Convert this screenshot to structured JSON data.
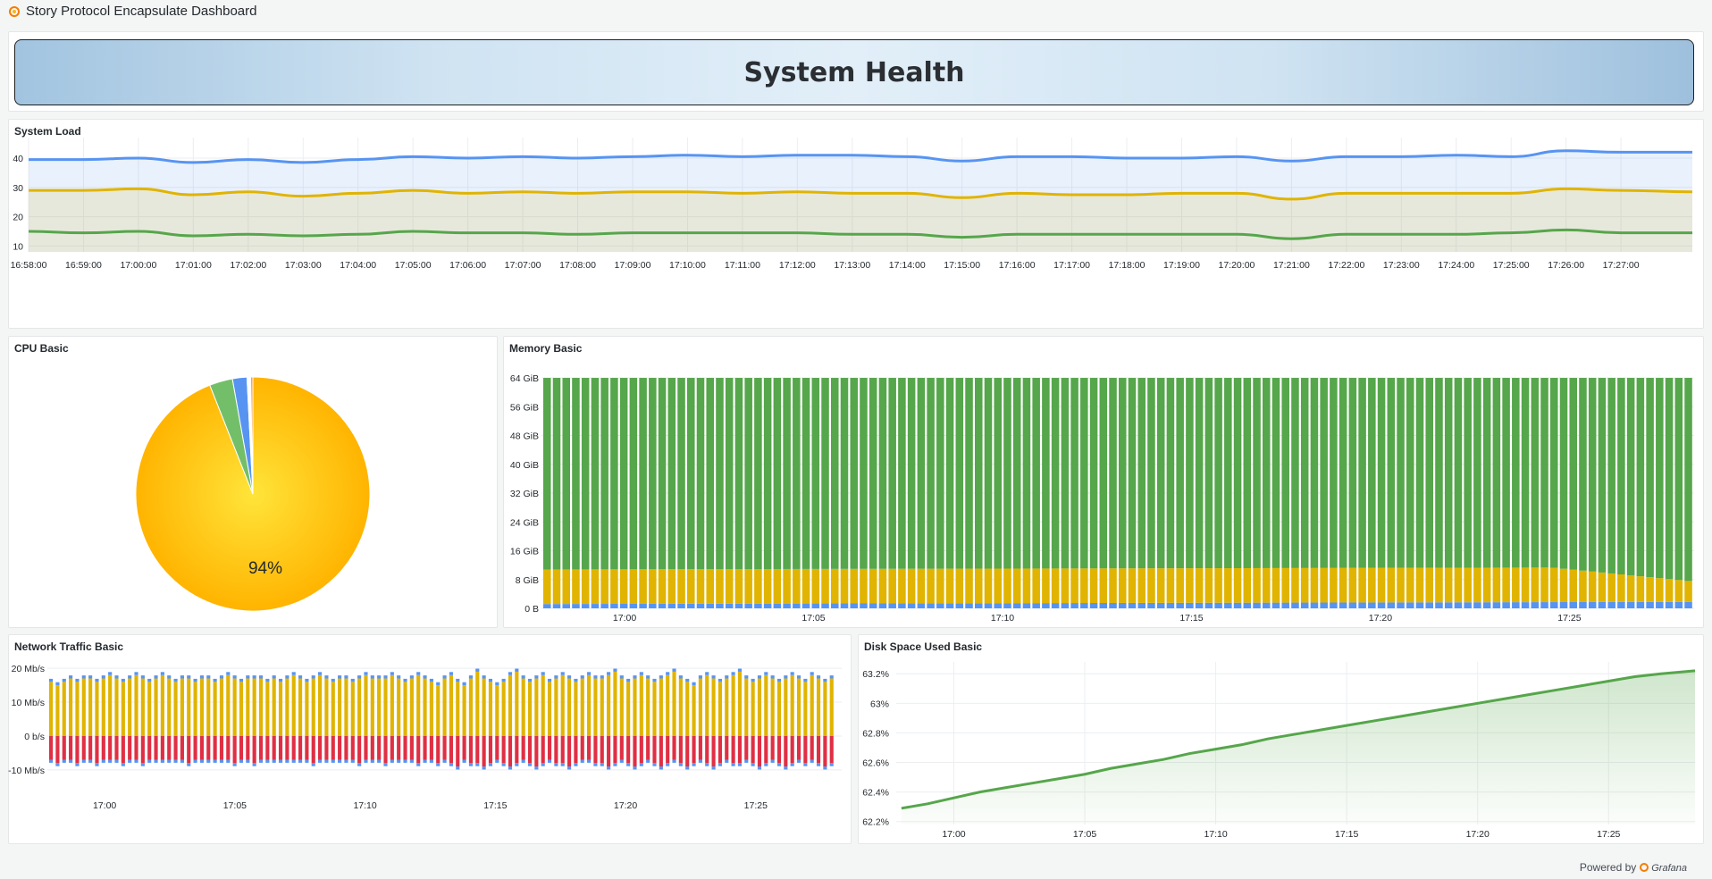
{
  "app": {
    "title": "Story Protocol Encapsulate Dashboard"
  },
  "banner": {
    "title": "System Health"
  },
  "panels": {
    "system_load": "System Load",
    "cpu": "CPU Basic",
    "memory": "Memory Basic",
    "network": "Network Traffic Basic",
    "disk": "Disk Space Used Basic"
  },
  "footer": {
    "label": "Powered by",
    "brand": "Grafana"
  },
  "colors": {
    "blue": "#5794f2",
    "yellow": "#e0b400",
    "green": "#56a64b",
    "red": "#e02f44",
    "pie_yellow": "#ffb400"
  },
  "chart_data": [
    {
      "id": "system_load",
      "type": "area",
      "x_tick_labels": [
        "16:58:00",
        "16:59:00",
        "17:00:00",
        "17:01:00",
        "17:02:00",
        "17:03:00",
        "17:04:00",
        "17:05:00",
        "17:06:00",
        "17:07:00",
        "17:08:00",
        "17:09:00",
        "17:10:00",
        "17:11:00",
        "17:12:00",
        "17:13:00",
        "17:14:00",
        "17:15:00",
        "17:16:00",
        "17:17:00",
        "17:18:00",
        "17:19:00",
        "17:20:00",
        "17:21:00",
        "17:22:00",
        "17:23:00",
        "17:24:00",
        "17:25:00",
        "17:26:00",
        "17:27:00"
      ],
      "y_ticks": [
        10,
        20,
        30,
        40
      ],
      "ylim": [
        8,
        47
      ],
      "x_range_minutes": [
        0,
        30.3
      ],
      "grid": true,
      "series": [
        {
          "color": "#5794f2",
          "fill": true,
          "points": [
            [
              0,
              39.5
            ],
            [
              1,
              39.5
            ],
            [
              2,
              40
            ],
            [
              3,
              38.5
            ],
            [
              4,
              39.5
            ],
            [
              5,
              38.5
            ],
            [
              6,
              39.5
            ],
            [
              7,
              40.5
            ],
            [
              8,
              40
            ],
            [
              9,
              40.5
            ],
            [
              10,
              40
            ],
            [
              11,
              40.5
            ],
            [
              12,
              41
            ],
            [
              13,
              40.5
            ],
            [
              14,
              41
            ],
            [
              15,
              41
            ],
            [
              16,
              40.5
            ],
            [
              17,
              39
            ],
            [
              18,
              40.5
            ],
            [
              19,
              40.5
            ],
            [
              20,
              40
            ],
            [
              21,
              40
            ],
            [
              22,
              40.5
            ],
            [
              23,
              39
            ],
            [
              24,
              40.5
            ],
            [
              25,
              40.5
            ],
            [
              26,
              41
            ],
            [
              27,
              40.5
            ],
            [
              28,
              42.5
            ],
            [
              29,
              42
            ],
            [
              30.3,
              42
            ]
          ]
        },
        {
          "color": "#e0b400",
          "fill": true,
          "points": [
            [
              0,
              29
            ],
            [
              1,
              29
            ],
            [
              2,
              29.5
            ],
            [
              3,
              27.5
            ],
            [
              4,
              28.5
            ],
            [
              5,
              27
            ],
            [
              6,
              28
            ],
            [
              7,
              29
            ],
            [
              8,
              28
            ],
            [
              9,
              28.5
            ],
            [
              10,
              28
            ],
            [
              11,
              28.5
            ],
            [
              12,
              28.5
            ],
            [
              13,
              28
            ],
            [
              14,
              28.5
            ],
            [
              15,
              28
            ],
            [
              16,
              28
            ],
            [
              17,
              26.5
            ],
            [
              18,
              28
            ],
            [
              19,
              27.5
            ],
            [
              20,
              27.5
            ],
            [
              21,
              28
            ],
            [
              22,
              28
            ],
            [
              23,
              26
            ],
            [
              24,
              28
            ],
            [
              25,
              28
            ],
            [
              26,
              28
            ],
            [
              27,
              28
            ],
            [
              28,
              29.5
            ],
            [
              29,
              29
            ],
            [
              30.3,
              28.5
            ]
          ]
        },
        {
          "color": "#56a64b",
          "fill": false,
          "points": [
            [
              0,
              15
            ],
            [
              1,
              14.5
            ],
            [
              2,
              15
            ],
            [
              3,
              13.5
            ],
            [
              4,
              14
            ],
            [
              5,
              13.5
            ],
            [
              6,
              14
            ],
            [
              7,
              15
            ],
            [
              8,
              14.5
            ],
            [
              9,
              14.5
            ],
            [
              10,
              14
            ],
            [
              11,
              14.5
            ],
            [
              12,
              14.5
            ],
            [
              13,
              14.5
            ],
            [
              14,
              14.5
            ],
            [
              15,
              14
            ],
            [
              16,
              14
            ],
            [
              17,
              13
            ],
            [
              18,
              14
            ],
            [
              19,
              14
            ],
            [
              20,
              14
            ],
            [
              21,
              14
            ],
            [
              22,
              14
            ],
            [
              23,
              12.5
            ],
            [
              24,
              14
            ],
            [
              25,
              14
            ],
            [
              26,
              14
            ],
            [
              27,
              14.5
            ],
            [
              28,
              15.5
            ],
            [
              29,
              14.5
            ],
            [
              30.3,
              14.5
            ]
          ]
        }
      ]
    },
    {
      "id": "cpu",
      "type": "pie",
      "label": "94%",
      "slices": [
        {
          "value": 94.0,
          "color": "#ffb400"
        },
        {
          "value": 3.2,
          "color": "#73bf69"
        },
        {
          "value": 2.0,
          "color": "#5794f2"
        },
        {
          "value": 0.5,
          "color": "#ffffff"
        },
        {
          "value": 0.3,
          "color": "#ff9830"
        }
      ]
    },
    {
      "id": "memory",
      "type": "bar",
      "stacked": true,
      "y_tick_labels": [
        "0 B",
        "8 GiB",
        "16 GiB",
        "24 GiB",
        "32 GiB",
        "40 GiB",
        "48 GiB",
        "56 GiB",
        "64 GiB"
      ],
      "y_tick_values": [
        0,
        8,
        16,
        24,
        32,
        40,
        48,
        56,
        64
      ],
      "ylim": [
        0,
        65
      ],
      "x_tick_labels": [
        "17:00",
        "17:05",
        "17:10",
        "17:15",
        "17:20",
        "17:25"
      ],
      "x_tick_minutes": [
        2,
        7,
        12,
        17,
        22,
        27
      ],
      "x_range_minutes": [
        -0.2,
        30.3
      ],
      "bar_count": 120,
      "total_gib": 64,
      "series": [
        {
          "color": "#5794f2",
          "start": 1.2,
          "end": 1.8
        },
        {
          "color": "#e0b400",
          "start": 9.6,
          "end": 5.8
        },
        {
          "color": "#56a64b",
          "remainder": true
        }
      ]
    },
    {
      "id": "network",
      "type": "bar",
      "stacked": true,
      "y_tick_labels": [
        "-10 Mb/s",
        "0 b/s",
        "10 Mb/s",
        "20 Mb/s"
      ],
      "y_tick_values": [
        -10,
        0,
        10,
        20
      ],
      "ylim": [
        -14,
        24
      ],
      "x_tick_labels": [
        "17:00",
        "17:05",
        "17:10",
        "17:15",
        "17:20",
        "17:25"
      ],
      "x_tick_minutes": [
        2,
        7,
        12,
        17,
        22,
        27
      ],
      "x_range_minutes": [
        -0.2,
        30.3
      ],
      "bar_count": 120,
      "inbound_mbps": [
        16,
        15,
        16,
        17,
        16,
        17,
        17,
        16,
        17,
        18,
        17,
        16,
        17,
        18,
        17,
        16,
        17,
        18,
        17,
        16,
        17,
        17,
        16,
        17,
        17,
        16,
        17,
        18,
        17,
        16,
        17,
        17,
        17,
        16,
        17,
        16,
        17,
        18,
        17,
        16,
        17,
        18,
        17,
        16,
        17,
        17,
        16,
        17,
        18,
        17,
        17,
        17,
        18,
        17,
        16,
        17,
        18,
        17,
        16,
        15,
        17,
        18,
        16,
        15,
        17,
        19,
        17,
        16,
        15,
        16,
        18,
        19,
        17,
        16,
        17,
        18,
        16,
        17,
        18,
        17,
        16,
        17,
        18,
        17,
        17,
        18,
        19,
        17,
        16,
        17,
        18,
        17,
        16,
        17,
        18,
        19,
        17,
        16,
        15,
        17,
        18,
        17,
        16,
        17,
        18,
        19,
        17,
        16,
        17,
        18,
        17,
        16,
        17,
        18,
        17,
        16,
        18,
        17,
        16,
        17
      ],
      "outbound_mbps": [
        -7,
        -8,
        -7,
        -7,
        -8,
        -7,
        -7,
        -8,
        -7,
        -7,
        -7,
        -8,
        -7,
        -7,
        -8,
        -7,
        -7,
        -7,
        -7,
        -7,
        -7,
        -8,
        -7,
        -7,
        -7,
        -7,
        -7,
        -7,
        -8,
        -7,
        -7,
        -8,
        -7,
        -7,
        -7,
        -7,
        -7,
        -7,
        -7,
        -7,
        -8,
        -7,
        -7,
        -7,
        -7,
        -7,
        -7,
        -8,
        -7,
        -7,
        -7,
        -8,
        -7,
        -7,
        -7,
        -7,
        -8,
        -7,
        -7,
        -8,
        -7,
        -8,
        -9,
        -7,
        -8,
        -8,
        -9,
        -8,
        -7,
        -8,
        -9,
        -8,
        -7,
        -8,
        -9,
        -8,
        -7,
        -8,
        -8,
        -9,
        -8,
        -7,
        -7,
        -8,
        -8,
        -9,
        -8,
        -7,
        -8,
        -9,
        -8,
        -7,
        -8,
        -9,
        -8,
        -7,
        -8,
        -9,
        -8,
        -7,
        -8,
        -9,
        -8,
        -7,
        -8,
        -8,
        -7,
        -8,
        -9,
        -8,
        -7,
        -8,
        -9,
        -8,
        -7,
        -8,
        -7,
        -8,
        -9,
        -8
      ],
      "series": [
        {
          "color": "#e0b400",
          "name_role": "inbound"
        },
        {
          "color": "#5794f2",
          "name_role": "cap"
        },
        {
          "color": "#e02f44",
          "name_role": "outbound"
        }
      ]
    },
    {
      "id": "disk",
      "type": "area",
      "y_tick_labels": [
        "62.2%",
        "62.4%",
        "62.6%",
        "62.8%",
        "63%",
        "63.2%"
      ],
      "y_tick_values": [
        62.2,
        62.4,
        62.6,
        62.8,
        63.0,
        63.2
      ],
      "ylim": [
        62.18,
        63.28
      ],
      "x_tick_labels": [
        "17:00",
        "17:05",
        "17:10",
        "17:15",
        "17:20",
        "17:25"
      ],
      "x_tick_minutes": [
        2,
        7,
        12,
        17,
        22,
        27
      ],
      "x_range_minutes": [
        -0.2,
        30.3
      ],
      "grid": true,
      "series": [
        {
          "color": "#56a64b",
          "fill": true,
          "points": [
            [
              0,
              62.29
            ],
            [
              1,
              62.32
            ],
            [
              2,
              62.36
            ],
            [
              3,
              62.4
            ],
            [
              4,
              62.43
            ],
            [
              5,
              62.46
            ],
            [
              6,
              62.49
            ],
            [
              7,
              62.52
            ],
            [
              8,
              62.56
            ],
            [
              9,
              62.59
            ],
            [
              10,
              62.62
            ],
            [
              11,
              62.66
            ],
            [
              12,
              62.69
            ],
            [
              13,
              62.72
            ],
            [
              14,
              62.76
            ],
            [
              15,
              62.79
            ],
            [
              16,
              62.82
            ],
            [
              17,
              62.85
            ],
            [
              18,
              62.88
            ],
            [
              19,
              62.91
            ],
            [
              20,
              62.94
            ],
            [
              21,
              62.97
            ],
            [
              22,
              63.0
            ],
            [
              23,
              63.03
            ],
            [
              24,
              63.06
            ],
            [
              25,
              63.09
            ],
            [
              26,
              63.12
            ],
            [
              27,
              63.15
            ],
            [
              28,
              63.18
            ],
            [
              29,
              63.2
            ],
            [
              30.3,
              63.22
            ]
          ]
        }
      ]
    }
  ]
}
